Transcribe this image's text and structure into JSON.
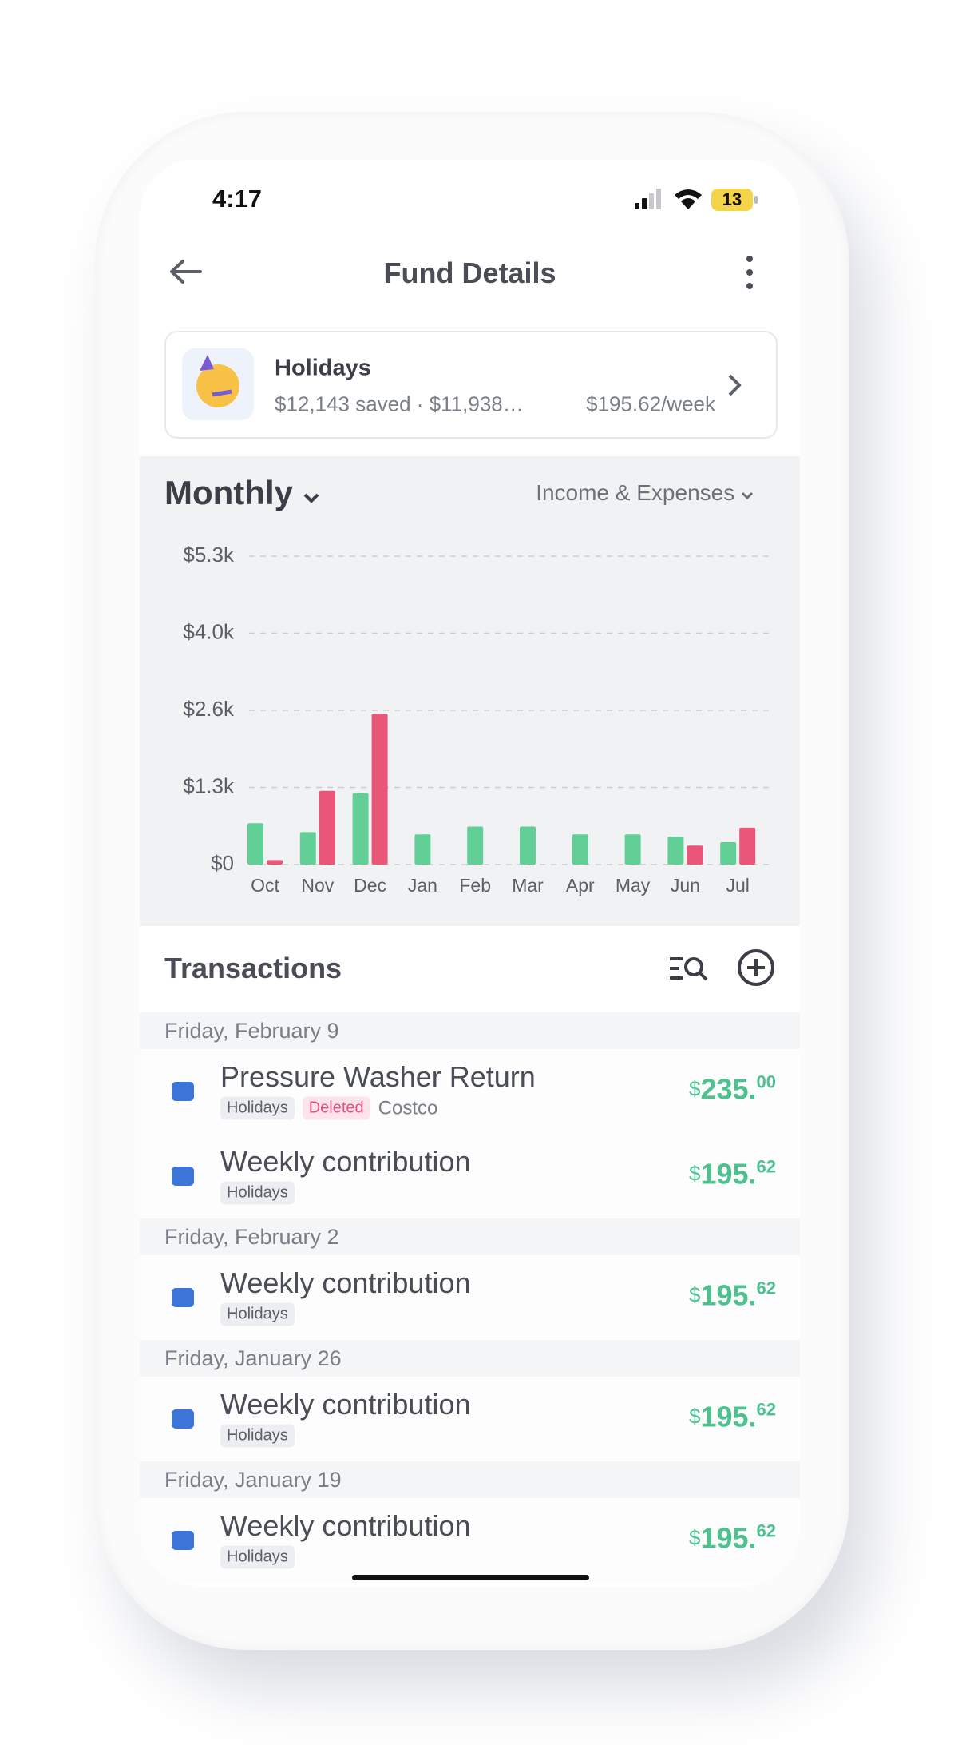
{
  "status_bar": {
    "time": "4:17",
    "battery": "13"
  },
  "header": {
    "title": "Fund Details"
  },
  "fund": {
    "name": "Holidays",
    "summary": "$12,143 saved · $11,938…",
    "rate": "$195.62/week"
  },
  "chart_controls": {
    "period": "Monthly",
    "view": "Income & Expenses"
  },
  "chart_data": {
    "type": "bar",
    "categories": [
      "Oct",
      "Nov",
      "Dec",
      "Jan",
      "Feb",
      "Mar",
      "Apr",
      "May",
      "Jun",
      "Jul"
    ],
    "series": [
      {
        "color": "#62cf97",
        "values": [
          710,
          557,
          1229,
          518,
          653,
          653,
          518,
          518,
          480,
          384
        ]
      },
      {
        "color": "#ea5677",
        "values": [
          77,
          1267,
          2592,
          null,
          null,
          null,
          null,
          null,
          326,
          634
        ]
      }
    ],
    "ylim": [
      0,
      5300
    ],
    "yticks": [
      {
        "value": 0,
        "label": "$0"
      },
      {
        "value": 1325,
        "label": "$1.3k"
      },
      {
        "value": 2650,
        "label": "$2.6k"
      },
      {
        "value": 3975,
        "label": "$4.0k"
      },
      {
        "value": 5300,
        "label": "$5.3k"
      }
    ],
    "grid": true
  },
  "transactions": {
    "title": "Transactions",
    "groups": [
      {
        "date": "Friday, February 9",
        "items": [
          {
            "title": "Pressure Washer Return",
            "fund_tag": "Holidays",
            "status": "Deleted",
            "merchant": "Costco",
            "amount": {
              "currency": "$",
              "whole": "235.",
              "cents": "00"
            }
          },
          {
            "title": "Weekly contribution",
            "fund_tag": "Holidays",
            "amount": {
              "currency": "$",
              "whole": "195.",
              "cents": "62"
            }
          }
        ]
      },
      {
        "date": "Friday, February 2",
        "items": [
          {
            "title": "Weekly contribution",
            "fund_tag": "Holidays",
            "amount": {
              "currency": "$",
              "whole": "195.",
              "cents": "62"
            }
          }
        ]
      },
      {
        "date": "Friday, January 26",
        "items": [
          {
            "title": "Weekly contribution",
            "fund_tag": "Holidays",
            "amount": {
              "currency": "$",
              "whole": "195.",
              "cents": "62"
            }
          }
        ]
      },
      {
        "date": "Friday, January 19",
        "items": [
          {
            "title": "Weekly contribution",
            "fund_tag": "Holidays",
            "amount": {
              "currency": "$",
              "whole": "195.",
              "cents": "62"
            }
          }
        ]
      }
    ]
  }
}
